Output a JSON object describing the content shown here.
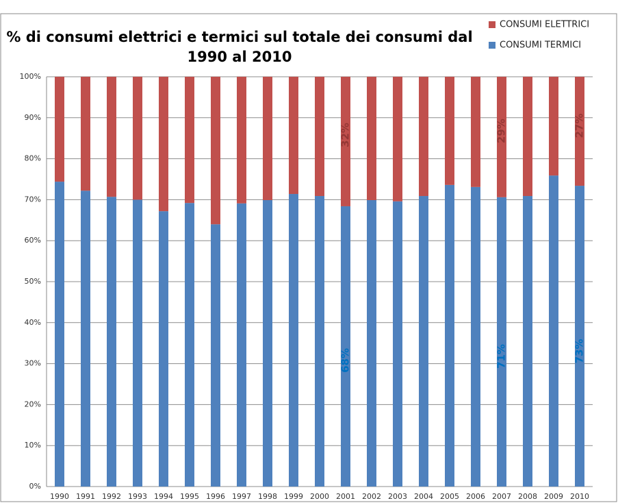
{
  "chart_data": {
    "type": "stacked_bar",
    "title": [
      "% di consumi elettrici e termici sul totale dei consumi dal",
      "1990 al 2010"
    ],
    "categories": [
      "1990",
      "1991",
      "1992",
      "1993",
      "1994",
      "1995",
      "1996",
      "1997",
      "1998",
      "1999",
      "2000",
      "2001",
      "2002",
      "2003",
      "2004",
      "2005",
      "2006",
      "2007",
      "2008",
      "2009",
      "2010"
    ],
    "series": [
      {
        "name": "CONSUMI TERMICI",
        "color": "#4f81bd",
        "label_color": "#0070c0",
        "values": [
          74.4,
          72.2,
          70.7,
          70.0,
          67.2,
          69.2,
          64.0,
          69.1,
          69.9,
          71.4,
          70.9,
          68.4,
          69.9,
          69.6,
          70.9,
          73.6,
          73.1,
          70.6,
          70.9,
          75.9,
          73.4
        ],
        "value_labels": [
          null,
          null,
          null,
          null,
          null,
          null,
          null,
          null,
          null,
          null,
          null,
          "68%",
          null,
          null,
          null,
          null,
          null,
          "71%",
          null,
          null,
          "73%"
        ]
      },
      {
        "name": "CONSUMI ELETTRICI",
        "color": "#c0504d",
        "label_color": "#953735",
        "values": [
          25.6,
          27.8,
          29.3,
          30.0,
          32.8,
          30.8,
          36.0,
          30.9,
          30.1,
          28.6,
          29.1,
          31.6,
          30.1,
          30.4,
          29.1,
          26.4,
          26.9,
          29.4,
          29.1,
          24.1,
          26.6
        ],
        "value_labels": [
          null,
          null,
          null,
          null,
          null,
          null,
          null,
          null,
          null,
          null,
          null,
          "32%",
          null,
          null,
          null,
          null,
          null,
          "29%",
          null,
          null,
          "27%"
        ]
      }
    ],
    "ylim": [
      0,
      100
    ],
    "yticks": [
      {
        "value": 0,
        "label": "0%"
      },
      {
        "value": 10,
        "label": "10%"
      },
      {
        "value": 20,
        "label": "20%"
      },
      {
        "value": 30,
        "label": "30%"
      },
      {
        "value": 40,
        "label": "40%"
      },
      {
        "value": 50,
        "label": "50%"
      },
      {
        "value": 60,
        "label": "60%"
      },
      {
        "value": 70,
        "label": "70%"
      },
      {
        "value": 80,
        "label": "80%"
      },
      {
        "value": 90,
        "label": "90%"
      },
      {
        "value": 100,
        "label": "100%"
      }
    ],
    "grid": true,
    "legend": "top-right"
  }
}
